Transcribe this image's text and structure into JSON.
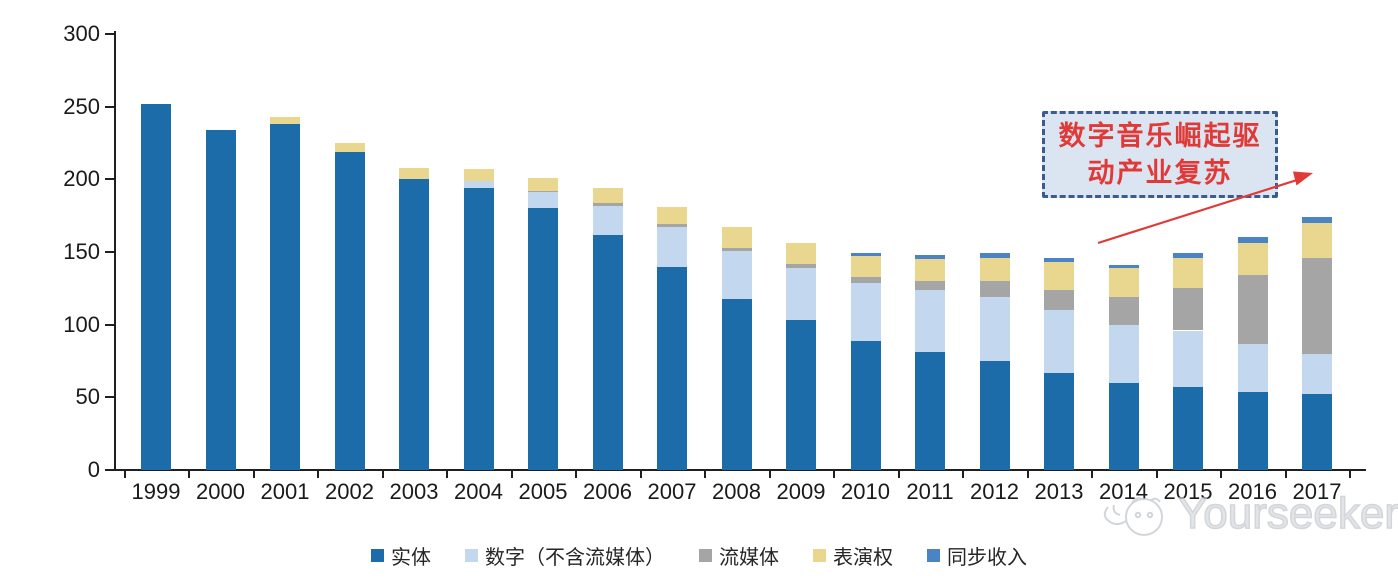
{
  "chart_data": {
    "type": "bar",
    "stacked": true,
    "title": "",
    "xlabel": "",
    "ylabel": "",
    "ylim": [
      0,
      300
    ],
    "yticks": [
      0,
      50,
      100,
      150,
      200,
      250,
      300
    ],
    "grid": false,
    "legend_position": "bottom",
    "categories": [
      "1999",
      "2000",
      "2001",
      "2002",
      "2003",
      "2004",
      "2005",
      "2006",
      "2007",
      "2008",
      "2009",
      "2010",
      "2011",
      "2012",
      "2013",
      "2014",
      "2015",
      "2016",
      "2017"
    ],
    "series": [
      {
        "name": "实体",
        "color": "#1B6CA8",
        "values": [
          252,
          234,
          238,
          219,
          200,
          194,
          180,
          162,
          140,
          118,
          103,
          89,
          81,
          75,
          67,
          60,
          57,
          54,
          52
        ]
      },
      {
        "name": "数字（不含流媒体）",
        "color": "#C3D8EE",
        "values": [
          0,
          0,
          0,
          0,
          0,
          5,
          11,
          20,
          27,
          33,
          36,
          40,
          43,
          44,
          43,
          40,
          39,
          33,
          28
        ]
      },
      {
        "name": "流媒体",
        "color": "#A5A5A5",
        "values": [
          0,
          0,
          0,
          0,
          0,
          0,
          1,
          2,
          2,
          2,
          3,
          4,
          6,
          11,
          14,
          19,
          29,
          47,
          66
        ]
      },
      {
        "name": "表演权",
        "color": "#E9D78F",
        "values": [
          0,
          0,
          5,
          6,
          8,
          8,
          9,
          10,
          12,
          14,
          14,
          14,
          15,
          16,
          19,
          20,
          21,
          22,
          24
        ]
      },
      {
        "name": "同步收入",
        "color": "#4A84C4",
        "values": [
          0,
          0,
          0,
          0,
          0,
          0,
          0,
          0,
          0,
          0,
          0,
          2,
          3,
          3,
          3,
          2,
          3,
          4,
          4
        ]
      }
    ]
  },
  "annotation": {
    "line1": "数字音乐崛起驱",
    "line2": "动产业复苏",
    "full_text": "数字音乐崛起驱动产业复苏"
  },
  "watermark": {
    "text": "Yourseeker"
  },
  "colors": {
    "axis": "#1F1F1F",
    "bar_physical": "#1B6CA8",
    "bar_digital": "#C3D8EE",
    "bar_streaming": "#A5A5A5",
    "bar_performance": "#E9D78F",
    "bar_sync": "#4A84C4",
    "annotation_border": "#3C5C90",
    "annotation_fill": "#DBE5F2",
    "annotation_text": "#E03A38",
    "arrow": "#E03A38",
    "watermark_gray": "#C3C8CD"
  }
}
